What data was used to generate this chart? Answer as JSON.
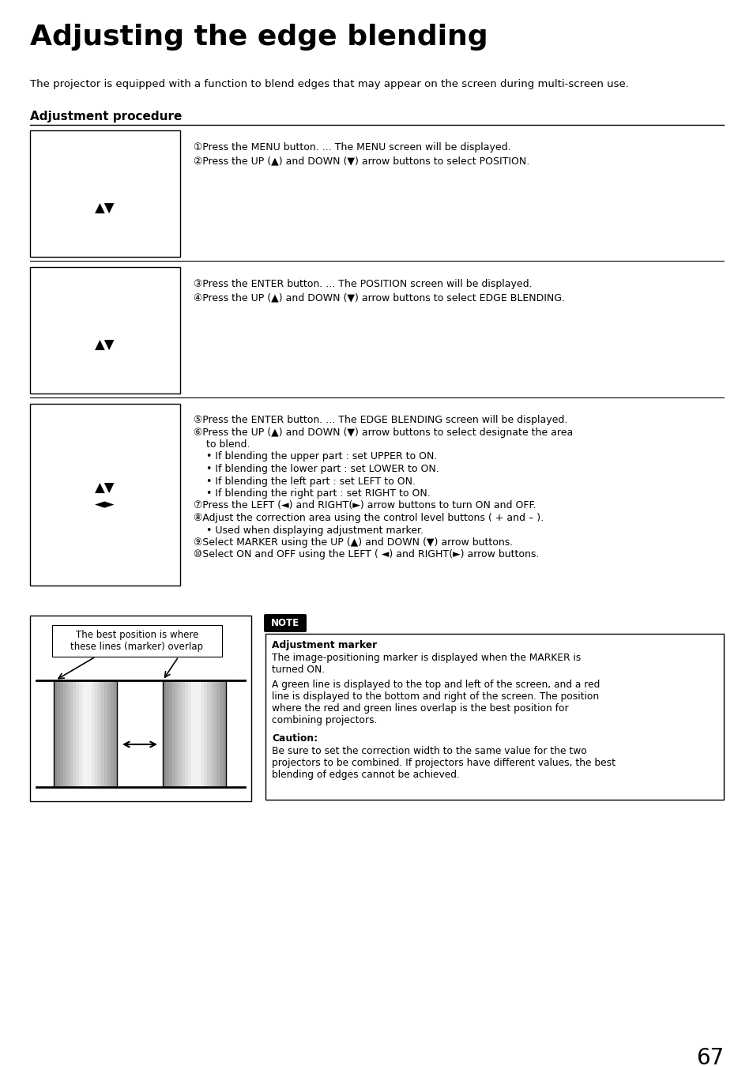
{
  "title": "Adjusting the edge blending",
  "subtitle": "The projector is equipped with a function to blend edges that may appear on the screen during multi-screen use.",
  "section_header": "Adjustment procedure",
  "page_number": "67",
  "background_color": "#ffffff",
  "text_color": "#000000",
  "step1_texts": [
    "①Press the MENU button. ... The MENU screen will be displayed.",
    "②Press the UP (▲) and DOWN (▼) arrow buttons to select POSITION."
  ],
  "step2_texts": [
    "③Press the ENTER button. ... The POSITION screen will be displayed.",
    "④Press the UP (▲) and DOWN (▼) arrow buttons to select EDGE BLENDING."
  ],
  "step3_texts": [
    "⑤Press the ENTER button. ... The EDGE BLENDING screen will be displayed.",
    "⑥Press the UP (▲) and DOWN (▼) arrow buttons to select designate the area",
    "    to blend.",
    "    • If blending the upper part : set UPPER to ON.",
    "    • If blending the lower part : set LOWER to ON.",
    "    • If blending the left part : set LEFT to ON.",
    "    • If blending the right part : set RIGHT to ON.",
    "⑦Press the LEFT (◄) and RIGHT(►) arrow buttons to turn ON and OFF.",
    "⑧Adjust the correction area using the control level buttons ( + and – ).",
    "    • Used when displaying adjustment marker.",
    "⑨Select MARKER using the UP (▲) and DOWN (▼) arrow buttons.",
    "⑩Select ON and OFF using the LEFT ( ◄) and RIGHT(►) arrow buttons."
  ],
  "note_label": "NOTE",
  "note_title": "Adjustment marker",
  "note_text1": "The image-positioning marker is displayed when the MARKER is\nturned ON.",
  "note_text2": "A green line is displayed to the top and left of the screen, and a red\nline is displayed to the bottom and right of the screen. The position\nwhere the red and green lines overlap is the best position for\ncombining projectors.",
  "caution_title": "Caution:",
  "caution_text": "Be sure to set the correction width to the same value for the two\nprojectors to be combined. If projectors have different values, the best\nblending of edges cannot be achieved.",
  "diagram_label": "The best position is where\nthese lines (marker) overlap"
}
